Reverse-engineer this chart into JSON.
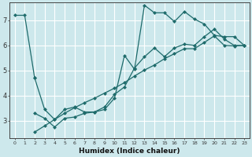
{
  "background_color": "#cde8ec",
  "grid_color": "#ffffff",
  "line_color": "#1e6b6b",
  "xlabel": "Humidex (Indice chaleur)",
  "ylim": [
    2.3,
    7.7
  ],
  "xlim": [
    -0.5,
    23.5
  ],
  "yticks": [
    3,
    4,
    5,
    6,
    7
  ],
  "xticks": [
    0,
    1,
    2,
    3,
    4,
    5,
    6,
    7,
    8,
    9,
    10,
    11,
    12,
    13,
    14,
    15,
    16,
    17,
    18,
    19,
    20,
    21,
    22,
    23
  ],
  "line1_x": [
    0,
    1,
    2
  ],
  "line1_y": [
    7.2,
    7.2,
    4.7
  ],
  "line2_x": [
    2,
    3,
    4,
    5,
    6,
    7,
    8,
    9,
    10,
    11,
    12,
    13,
    14,
    15,
    16,
    17,
    18,
    19,
    20,
    21,
    22,
    23
  ],
  "line2_y": [
    4.7,
    3.45,
    3.05,
    3.45,
    3.55,
    3.35,
    3.35,
    3.45,
    3.9,
    5.6,
    5.05,
    7.6,
    7.3,
    7.3,
    6.95,
    7.35,
    7.05,
    6.85,
    6.4,
    6.35,
    6.35,
    6.0
  ],
  "line3_x": [
    2,
    3,
    4,
    5,
    6,
    7,
    8,
    9,
    10,
    11,
    12,
    13,
    14,
    15,
    16,
    17,
    18,
    19,
    20,
    21,
    22,
    23
  ],
  "line3_y": [
    3.3,
    3.1,
    2.75,
    3.1,
    3.15,
    3.3,
    3.35,
    3.55,
    4.05,
    4.35,
    5.1,
    5.55,
    5.9,
    5.55,
    5.9,
    6.05,
    6.0,
    6.35,
    6.65,
    6.25,
    6.0,
    6.0
  ],
  "line4_x": [
    2,
    3,
    4,
    5,
    6,
    7,
    8,
    9,
    10,
    11,
    12,
    13,
    14,
    15,
    16,
    17,
    18,
    19,
    20,
    21,
    22,
    23
  ],
  "line4_y": [
    2.55,
    2.8,
    3.05,
    3.3,
    3.52,
    3.72,
    3.9,
    4.1,
    4.3,
    4.52,
    4.78,
    5.02,
    5.22,
    5.47,
    5.67,
    5.87,
    5.87,
    6.12,
    6.38,
    6.0,
    5.98,
    6.0
  ]
}
